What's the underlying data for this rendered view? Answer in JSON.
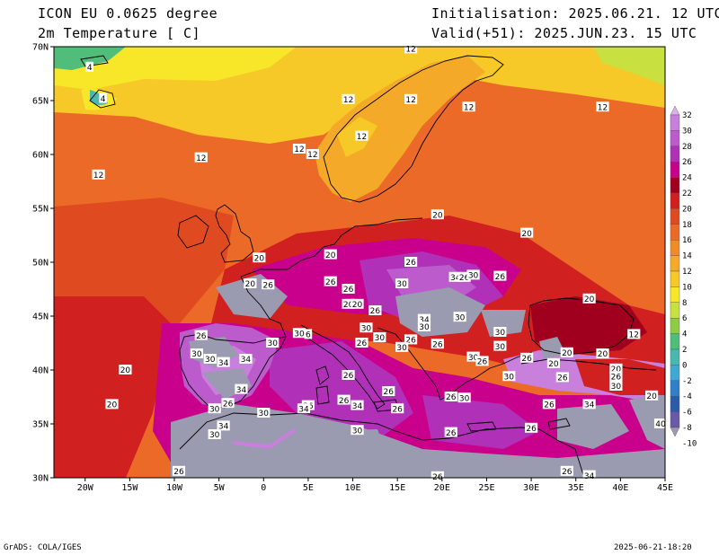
{
  "header": {
    "model": "ICON EU 0.0625 degree",
    "field": "2m Temperature [ C]",
    "init": "Initialisation: 2025.06.21. 12 UTC",
    "valid": "Valid(+51): 2025.JUN.23. 15 UTC"
  },
  "footer": {
    "credit": "GrADS: COLA/IGES",
    "timestamp": "2025-06-21-18:20"
  },
  "axes": {
    "lat_labels": [
      "70N",
      "65N",
      "60N",
      "55N",
      "50N",
      "45N",
      "40N",
      "35N",
      "30N"
    ],
    "lon_labels": [
      "20W",
      "15W",
      "10W",
      "5W",
      "0",
      "5E",
      "10E",
      "15E",
      "20E",
      "25E",
      "30E",
      "35E",
      "40E",
      "45E"
    ]
  },
  "colorbar": {
    "levels": [
      "32",
      "30",
      "28",
      "26",
      "24",
      "22",
      "20",
      "18",
      "16",
      "14",
      "12",
      "10",
      "8",
      "6",
      "4",
      "2",
      "0",
      "-2",
      "-4",
      "-6",
      "-8",
      "-10"
    ],
    "colors": [
      "#dcb0e6",
      "#c880dc",
      "#bc5ccc",
      "#b030b8",
      "#c8008c",
      "#a0001e",
      "#d02020",
      "#e04a20",
      "#ec6a28",
      "#f08c28",
      "#f4aa28",
      "#f6c828",
      "#f8e628",
      "#c8e040",
      "#8ccc46",
      "#50be7a",
      "#48b8b0",
      "#40a8d4",
      "#3080c8",
      "#2c5ca8",
      "#6a58a8",
      "#9a9ab0"
    ]
  },
  "isotherm_labels": [
    {
      "text": "4",
      "lon": -19.5,
      "lat": 68.1
    },
    {
      "text": "4",
      "lon": -18.0,
      "lat": 65.2
    },
    {
      "text": "12",
      "lon": 16.5,
      "lat": 69.8
    },
    {
      "text": "12",
      "lon": 9.5,
      "lat": 65.1
    },
    {
      "text": "12",
      "lon": 16.5,
      "lat": 65.1
    },
    {
      "text": "12",
      "lon": 23.0,
      "lat": 64.4
    },
    {
      "text": "12",
      "lon": 38.0,
      "lat": 64.4
    },
    {
      "text": "12",
      "lon": 11.0,
      "lat": 61.7
    },
    {
      "text": "12",
      "lon": 4.0,
      "lat": 60.5
    },
    {
      "text": "12",
      "lon": 5.5,
      "lat": 60.0
    },
    {
      "text": "12",
      "lon": -7.0,
      "lat": 59.7
    },
    {
      "text": "12",
      "lon": -18.5,
      "lat": 58.1
    },
    {
      "text": "20",
      "lon": 19.5,
      "lat": 54.4
    },
    {
      "text": "20",
      "lon": 29.5,
      "lat": 52.7
    },
    {
      "text": "20",
      "lon": -0.5,
      "lat": 50.4
    },
    {
      "text": "20",
      "lon": 7.5,
      "lat": 50.7
    },
    {
      "text": "20",
      "lon": -1.5,
      "lat": 48.0
    },
    {
      "text": "26",
      "lon": 0.5,
      "lat": 47.9
    },
    {
      "text": "26",
      "lon": 7.5,
      "lat": 48.2
    },
    {
      "text": "26",
      "lon": 16.5,
      "lat": 50.0
    },
    {
      "text": "30",
      "lon": 15.5,
      "lat": 48.0
    },
    {
      "text": "34",
      "lon": 21.5,
      "lat": 48.6
    },
    {
      "text": "26",
      "lon": 22.5,
      "lat": 48.6
    },
    {
      "text": "30",
      "lon": 23.5,
      "lat": 48.8
    },
    {
      "text": "26",
      "lon": 26.5,
      "lat": 48.7
    },
    {
      "text": "20",
      "lon": 36.5,
      "lat": 46.6
    },
    {
      "text": "26",
      "lon": 9.5,
      "lat": 47.5
    },
    {
      "text": "20",
      "lon": 9.5,
      "lat": 46.1
    },
    {
      "text": "20",
      "lon": 10.5,
      "lat": 46.1
    },
    {
      "text": "26",
      "lon": 12.5,
      "lat": 45.5
    },
    {
      "text": "34",
      "lon": 18.0,
      "lat": 44.7
    },
    {
      "text": "30",
      "lon": 18.0,
      "lat": 44.0
    },
    {
      "text": "30",
      "lon": 22.0,
      "lat": 44.9
    },
    {
      "text": "30",
      "lon": 11.5,
      "lat": 43.9
    },
    {
      "text": "30",
      "lon": 26.5,
      "lat": 43.5
    },
    {
      "text": "12",
      "lon": 41.5,
      "lat": 43.3
    },
    {
      "text": "26",
      "lon": -7.0,
      "lat": 43.2
    },
    {
      "text": "30",
      "lon": 4.0,
      "lat": 43.4
    },
    {
      "text": "6",
      "lon": 5.0,
      "lat": 43.3
    },
    {
      "text": "30",
      "lon": 13.0,
      "lat": 43.0
    },
    {
      "text": "26",
      "lon": 16.5,
      "lat": 42.8
    },
    {
      "text": "26",
      "lon": 11.0,
      "lat": 42.5
    },
    {
      "text": "26",
      "lon": 19.5,
      "lat": 42.4
    },
    {
      "text": "30",
      "lon": 1.0,
      "lat": 42.5
    },
    {
      "text": "30",
      "lon": 15.5,
      "lat": 42.1
    },
    {
      "text": "30",
      "lon": 26.5,
      "lat": 42.2
    },
    {
      "text": "20",
      "lon": 34.0,
      "lat": 41.6
    },
    {
      "text": "20",
      "lon": 38.0,
      "lat": 41.5
    },
    {
      "text": "30",
      "lon": -7.5,
      "lat": 41.5
    },
    {
      "text": "30",
      "lon": -6.0,
      "lat": 41.0
    },
    {
      "text": "34",
      "lon": -4.5,
      "lat": 40.7
    },
    {
      "text": "34",
      "lon": -2.0,
      "lat": 41.0
    },
    {
      "text": "30",
      "lon": 23.5,
      "lat": 41.2
    },
    {
      "text": "26",
      "lon": 24.5,
      "lat": 40.8
    },
    {
      "text": "26",
      "lon": 29.5,
      "lat": 41.1
    },
    {
      "text": "20",
      "lon": 32.5,
      "lat": 40.6
    },
    {
      "text": "20",
      "lon": 39.5,
      "lat": 40.1
    },
    {
      "text": "26",
      "lon": 39.5,
      "lat": 39.4
    },
    {
      "text": "26",
      "lon": 33.5,
      "lat": 39.3
    },
    {
      "text": "20",
      "lon": -15.5,
      "lat": 40.0
    },
    {
      "text": "26",
      "lon": 9.5,
      "lat": 39.5
    },
    {
      "text": "30",
      "lon": 27.5,
      "lat": 39.4
    },
    {
      "text": "30",
      "lon": 39.5,
      "lat": 38.5
    },
    {
      "text": "34",
      "lon": -2.5,
      "lat": 38.2
    },
    {
      "text": "26",
      "lon": 14.0,
      "lat": 38.0
    },
    {
      "text": "26",
      "lon": 9.0,
      "lat": 37.2
    },
    {
      "text": "26",
      "lon": 21.0,
      "lat": 37.5
    },
    {
      "text": "30",
      "lon": 22.5,
      "lat": 37.4
    },
    {
      "text": "20",
      "lon": 43.5,
      "lat": 37.6
    },
    {
      "text": "26",
      "lon": -4.0,
      "lat": 36.9
    },
    {
      "text": "20",
      "lon": -17.0,
      "lat": 36.8
    },
    {
      "text": "30",
      "lon": -5.5,
      "lat": 36.4
    },
    {
      "text": "34",
      "lon": 10.5,
      "lat": 36.7
    },
    {
      "text": "26",
      "lon": 15.0,
      "lat": 36.4
    },
    {
      "text": "26",
      "lon": 32.0,
      "lat": 36.8
    },
    {
      "text": "34",
      "lon": 36.5,
      "lat": 36.8
    },
    {
      "text": "26",
      "lon": 5.0,
      "lat": 36.7
    },
    {
      "text": "34",
      "lon": 4.5,
      "lat": 36.4
    },
    {
      "text": "30",
      "lon": 0.0,
      "lat": 36.0
    },
    {
      "text": "34",
      "lon": -4.5,
      "lat": 34.8
    },
    {
      "text": "40",
      "lon": 44.5,
      "lat": 35.0
    },
    {
      "text": "30",
      "lon": -5.5,
      "lat": 34.0
    },
    {
      "text": "30",
      "lon": 10.5,
      "lat": 34.4
    },
    {
      "text": "26",
      "lon": 21.0,
      "lat": 34.2
    },
    {
      "text": "26",
      "lon": 30.0,
      "lat": 34.6
    },
    {
      "text": "26",
      "lon": -9.5,
      "lat": 30.6
    },
    {
      "text": "26",
      "lon": 19.5,
      "lat": 30.1
    },
    {
      "text": "26",
      "lon": 34.0,
      "lat": 30.6
    },
    {
      "text": "34",
      "lon": 36.5,
      "lat": 30.2
    }
  ]
}
